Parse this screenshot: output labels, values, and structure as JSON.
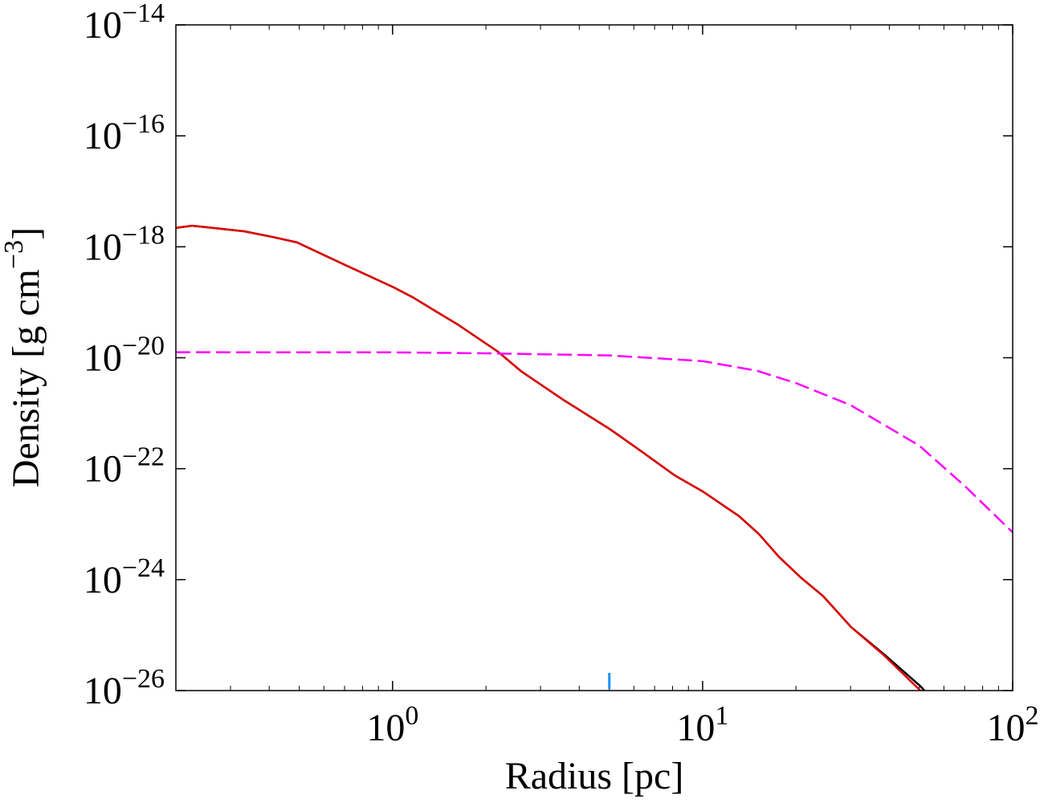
{
  "chart_data": {
    "type": "line",
    "xlabel": "Radius [pc]",
    "ylabel": "Density [g cm−3]",
    "xlog": true,
    "ylog": true,
    "xlim": [
      0.2,
      100
    ],
    "ylim": [
      1e-26,
      1e-14
    ],
    "xticks": [
      {
        "value": 1,
        "label": "100"
      },
      {
        "value": 10,
        "label": "101"
      },
      {
        "value": 100,
        "label": "102"
      }
    ],
    "xminorticks": [
      0.3,
      0.4,
      0.5,
      0.6,
      0.7,
      0.8,
      0.9,
      2,
      3,
      4,
      5,
      6,
      7,
      8,
      9,
      20,
      30,
      40,
      50,
      60,
      70,
      80,
      90
    ],
    "yticks": [
      {
        "value": 1e-14,
        "label": "10−14"
      },
      {
        "value": 1e-16,
        "label": "10−16"
      },
      {
        "value": 1e-18,
        "label": "10−18"
      },
      {
        "value": 1e-20,
        "label": "10−20"
      },
      {
        "value": 1e-22,
        "label": "10−22"
      },
      {
        "value": 1e-24,
        "label": "10−24"
      },
      {
        "value": 1e-26,
        "label": "10−26"
      }
    ],
    "series": [
      {
        "color": "#000000",
        "dash": false,
        "x": [
          0.2,
          0.226,
          0.333,
          0.411,
          0.492,
          0.703,
          1.0,
          1.17,
          1.36,
          1.62,
          2.18,
          2.61,
          3.52,
          5.04,
          6.39,
          8.12,
          10,
          13.1,
          15.2,
          17.6,
          20.7,
          24.5,
          30.1,
          38.3,
          50.4,
          51.9
        ],
        "values": [
          2.2e-18,
          2.4e-18,
          1.9e-18,
          1.5e-18,
          1.2e-18,
          4.7e-19,
          1.9e-19,
          1.2e-19,
          7.2e-20,
          4e-20,
          1.3e-20,
          5.6e-21,
          1.8e-21,
          5.1e-22,
          2e-22,
          7.6e-23,
          3.9e-23,
          1.4e-23,
          6.6e-24,
          2.6e-24,
          1.1e-24,
          5e-25,
          1.4e-25,
          4.6e-26,
          1.2e-26,
          1e-26
        ]
      },
      {
        "color": "#e00000",
        "dash": false,
        "x": [
          0.2,
          0.226,
          0.333,
          0.411,
          0.492,
          0.703,
          1.0,
          1.17,
          1.36,
          1.62,
          2.18,
          2.61,
          3.52,
          5.04,
          6.39,
          8.12,
          10,
          13.1,
          15.2,
          17.6,
          20.7,
          24.5,
          30.1,
          38.3,
          50.4
        ],
        "values": [
          2.2e-18,
          2.4e-18,
          1.9e-18,
          1.5e-18,
          1.2e-18,
          4.7e-19,
          1.9e-19,
          1.2e-19,
          7.2e-20,
          4e-20,
          1.3e-20,
          5.6e-21,
          1.8e-21,
          5.1e-22,
          2e-22,
          7.6e-23,
          3.9e-23,
          1.4e-23,
          6.6e-24,
          2.6e-24,
          1.1e-24,
          5e-25,
          1.4e-25,
          4.4e-26,
          1e-26
        ]
      },
      {
        "color": "#ff00ff",
        "dash": true,
        "x": [
          0.2,
          0.5,
          1,
          2,
          5,
          10,
          15,
          20,
          30,
          50,
          70,
          100
        ],
        "values": [
          1.26e-20,
          1.25e-20,
          1.25e-20,
          1.2e-20,
          1.1e-20,
          8.7e-21,
          5.8e-21,
          3.5e-21,
          1.4e-21,
          2.6e-22,
          4.9e-23,
          7.1e-24
        ]
      }
    ],
    "vline": {
      "x": 5,
      "color": "#1f8fff"
    }
  }
}
